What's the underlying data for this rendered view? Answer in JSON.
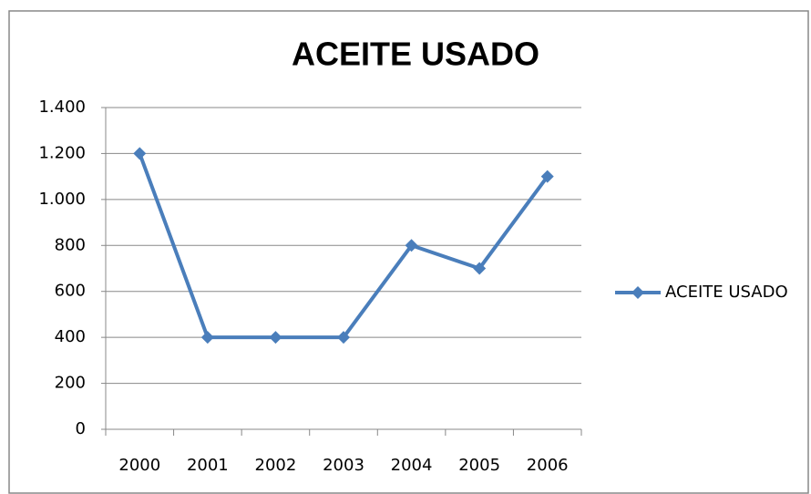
{
  "chart_data": {
    "type": "line",
    "title": "ACEITE USADO",
    "categories": [
      "2000",
      "2001",
      "2002",
      "2003",
      "2004",
      "2005",
      "2006"
    ],
    "series": [
      {
        "name": "ACEITE USADO",
        "color": "#4a7ebb",
        "values": [
          1200,
          400,
          400,
          400,
          800,
          700,
          1100
        ]
      }
    ],
    "ylim": [
      0,
      1400
    ],
    "yticks": [
      0,
      200,
      400,
      600,
      800,
      {
        "value": 1000,
        "label": "1.000"
      },
      {
        "value": 1200,
        "label": "1.200"
      },
      {
        "value": 1400,
        "label": "1.400"
      }
    ],
    "grid": true,
    "legend": "right"
  }
}
